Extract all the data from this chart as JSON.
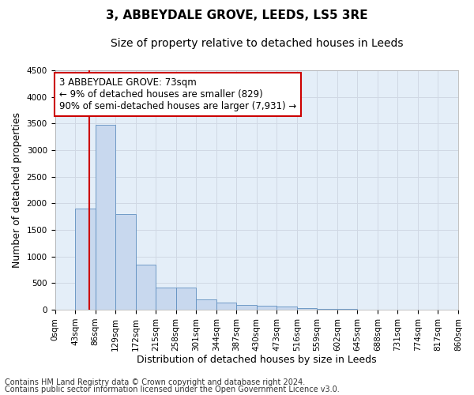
{
  "title": "3, ABBEYDALE GROVE, LEEDS, LS5 3RE",
  "subtitle": "Size of property relative to detached houses in Leeds",
  "xlabel": "Distribution of detached houses by size in Leeds",
  "ylabel": "Number of detached properties",
  "bar_color": "#c8d8ee",
  "bar_edge_color": "#6090c0",
  "grid_color": "#d0d8e4",
  "bg_color": "#e4eef8",
  "annotation_box_color": "#cc0000",
  "property_line_color": "#cc0000",
  "annotation_text_line1": "3 ABBEYDALE GROVE: 73sqm",
  "annotation_text_line2": "← 9% of detached houses are smaller (829)",
  "annotation_text_line3": "90% of semi-detached houses are larger (7,931) →",
  "property_size": 73,
  "bin_edges": [
    0,
    43,
    86,
    129,
    172,
    215,
    258,
    301,
    344,
    387,
    430,
    473,
    516,
    559,
    602,
    645,
    688,
    731,
    774,
    817,
    860
  ],
  "bar_heights": [
    5,
    1900,
    3480,
    1800,
    850,
    420,
    420,
    200,
    130,
    90,
    80,
    60,
    30,
    15,
    10,
    5,
    0,
    0,
    0,
    0
  ],
  "ylim": [
    0,
    4500
  ],
  "yticks": [
    0,
    500,
    1000,
    1500,
    2000,
    2500,
    3000,
    3500,
    4000,
    4500
  ],
  "footer_line1": "Contains HM Land Registry data © Crown copyright and database right 2024.",
  "footer_line2": "Contains public sector information licensed under the Open Government Licence v3.0.",
  "title_fontsize": 11,
  "subtitle_fontsize": 10,
  "axis_label_fontsize": 9,
  "tick_fontsize": 7.5,
  "annotation_fontsize": 8.5,
  "footer_fontsize": 7
}
